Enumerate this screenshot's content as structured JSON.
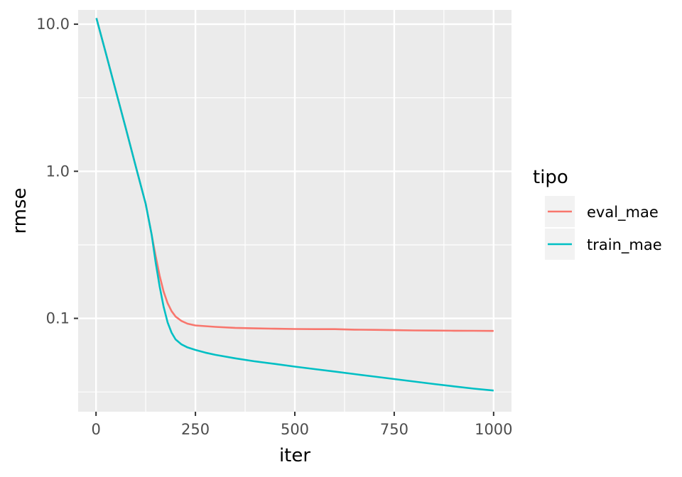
{
  "chart_data": {
    "type": "line",
    "xlabel": "iter",
    "ylabel": "rmse",
    "xlim": [
      -45,
      1045
    ],
    "ylim": [
      0.0232,
      12.5
    ],
    "y_scale": "log10",
    "x_ticks": [
      0,
      250,
      500,
      750,
      1000
    ],
    "x_tick_labels": [
      "0",
      "250",
      "500",
      "750",
      "1000"
    ],
    "x_minor_ticks": [
      125,
      375,
      625,
      875
    ],
    "y_ticks": [
      0.1,
      1,
      10
    ],
    "y_tick_labels": [
      "0.1",
      "1.0",
      "10.0"
    ],
    "y_minor_ticks": [
      0.0316,
      0.316,
      3.16
    ],
    "grid": true,
    "background": "#ebebeb",
    "legend": {
      "title": "tipo",
      "position": "right"
    },
    "series": [
      {
        "name": "eval_mae",
        "color": "#f8766d",
        "x": [
          1,
          25,
          50,
          75,
          100,
          125,
          140,
          150,
          160,
          170,
          180,
          190,
          200,
          215,
          230,
          250,
          275,
          300,
          350,
          400,
          450,
          500,
          550,
          600,
          650,
          700,
          750,
          800,
          850,
          900,
          950,
          1000
        ],
        "y": [
          11.0,
          6.3,
          3.5,
          1.95,
          1.08,
          0.6,
          0.37,
          0.265,
          0.195,
          0.152,
          0.127,
          0.112,
          0.103,
          0.096,
          0.092,
          0.0895,
          0.0885,
          0.0875,
          0.0862,
          0.0855,
          0.085,
          0.0847,
          0.0845,
          0.0845,
          0.0838,
          0.0835,
          0.0832,
          0.0828,
          0.0826,
          0.0824,
          0.0823,
          0.0822
        ]
      },
      {
        "name": "train_mae",
        "color": "#00bfc4",
        "x": [
          1,
          25,
          50,
          75,
          100,
          125,
          140,
          150,
          160,
          170,
          180,
          190,
          200,
          215,
          230,
          250,
          275,
          300,
          350,
          400,
          450,
          500,
          550,
          600,
          650,
          700,
          750,
          800,
          850,
          900,
          950,
          1000
        ],
        "y": [
          11.0,
          6.3,
          3.5,
          1.95,
          1.08,
          0.6,
          0.37,
          0.24,
          0.165,
          0.12,
          0.094,
          0.08,
          0.072,
          0.0665,
          0.0635,
          0.061,
          0.0585,
          0.0565,
          0.0535,
          0.051,
          0.049,
          0.047,
          0.0452,
          0.0435,
          0.0418,
          0.0402,
          0.0387,
          0.0372,
          0.0358,
          0.0345,
          0.0333,
          0.0323
        ]
      }
    ]
  }
}
